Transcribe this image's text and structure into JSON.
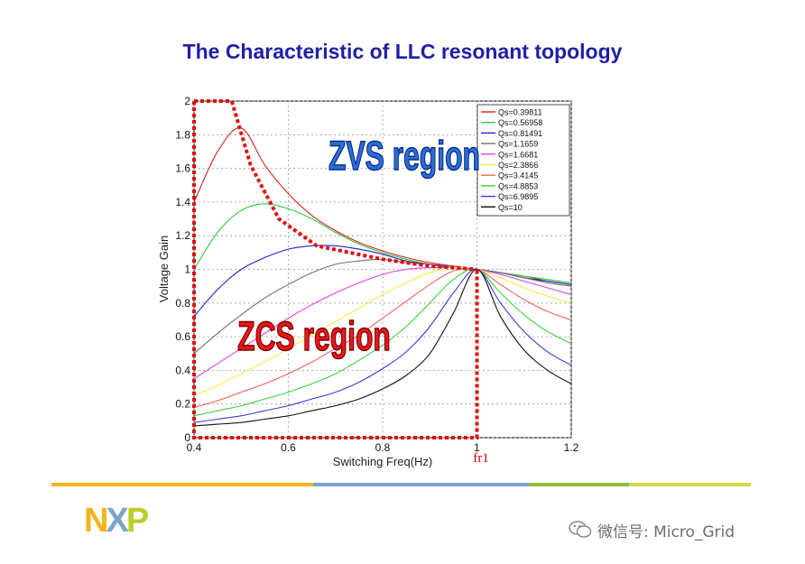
{
  "slide": {
    "title": "The Characteristic of LLC resonant topology",
    "watermark_text": "微信号: Micro_Grid",
    "watermark_icon": "wechat-icon",
    "logo_name": "nxp-logo",
    "logo_text": "NXP",
    "divider_colors": [
      "#f5b21b",
      "#7fa3c9",
      "#8bbd3e",
      "#cfd94a"
    ]
  },
  "chart_data": {
    "type": "line",
    "title": "",
    "xlabel": "Switching Freq(Hz)",
    "ylabel": "Voltage Gain",
    "xlim": [
      0.4,
      1.2
    ],
    "ylim": [
      0,
      2
    ],
    "xticks": [
      "0.4",
      "0.6",
      "0.8",
      "1",
      "1.2"
    ],
    "yticks": [
      "0",
      "0.2",
      "0.4",
      "0.6",
      "0.8",
      "1",
      "1.2",
      "1.4",
      "1.6",
      "1.8",
      "2"
    ],
    "grid": true,
    "legend_position": "top-right",
    "x": [
      0.4,
      0.45,
      0.5,
      0.55,
      0.6,
      0.65,
      0.7,
      0.75,
      0.8,
      0.85,
      0.9,
      0.95,
      1.0,
      1.05,
      1.1,
      1.15,
      1.2
    ],
    "series": [
      {
        "name": "Qs=0.39811",
        "color": "#d42020",
        "values": [
          1.4,
          1.7,
          1.84,
          1.62,
          1.45,
          1.32,
          1.23,
          1.16,
          1.11,
          1.07,
          1.04,
          1.02,
          1.0,
          0.98,
          0.96,
          0.93,
          0.91
        ]
      },
      {
        "name": "Qs=0.56958",
        "color": "#2ecc3a",
        "values": [
          1.0,
          1.22,
          1.35,
          1.39,
          1.36,
          1.3,
          1.22,
          1.15,
          1.1,
          1.06,
          1.03,
          1.01,
          1.0,
          0.98,
          0.96,
          0.94,
          0.92
        ]
      },
      {
        "name": "Qs=0.81491",
        "color": "#2020d0",
        "values": [
          0.72,
          0.88,
          1.0,
          1.07,
          1.12,
          1.14,
          1.14,
          1.12,
          1.09,
          1.05,
          1.03,
          1.01,
          1.0,
          0.98,
          0.95,
          0.93,
          0.91
        ]
      },
      {
        "name": "Qs=1.1659",
        "color": "#707070",
        "values": [
          0.5,
          0.62,
          0.73,
          0.83,
          0.91,
          0.98,
          1.03,
          1.05,
          1.06,
          1.04,
          1.03,
          1.02,
          1.0,
          0.98,
          0.95,
          0.92,
          0.9
        ]
      },
      {
        "name": "Qs=1.6681",
        "color": "#e040e0",
        "values": [
          0.35,
          0.44,
          0.53,
          0.62,
          0.71,
          0.79,
          0.86,
          0.92,
          0.97,
          1.0,
          1.01,
          1.01,
          1.0,
          0.97,
          0.93,
          0.89,
          0.85
        ]
      },
      {
        "name": "Qs=2.3866",
        "color": "#f2ee40",
        "values": [
          0.25,
          0.31,
          0.38,
          0.45,
          0.53,
          0.61,
          0.69,
          0.77,
          0.85,
          0.92,
          0.98,
          1.01,
          1.0,
          0.95,
          0.89,
          0.84,
          0.8
        ]
      },
      {
        "name": "Qs=3.4145",
        "color": "#f06060",
        "values": [
          0.18,
          0.22,
          0.27,
          0.32,
          0.38,
          0.45,
          0.53,
          0.61,
          0.71,
          0.81,
          0.91,
          0.99,
          1.0,
          0.91,
          0.82,
          0.75,
          0.7
        ]
      },
      {
        "name": "Qs=4.8853",
        "color": "#40d040",
        "values": [
          0.13,
          0.16,
          0.19,
          0.23,
          0.27,
          0.32,
          0.38,
          0.46,
          0.55,
          0.66,
          0.8,
          0.94,
          1.0,
          0.86,
          0.73,
          0.63,
          0.56
        ]
      },
      {
        "name": "Qs=6.9895",
        "color": "#3a3ad8",
        "values": [
          0.09,
          0.11,
          0.13,
          0.16,
          0.19,
          0.23,
          0.27,
          0.33,
          0.41,
          0.51,
          0.66,
          0.86,
          1.0,
          0.8,
          0.63,
          0.51,
          0.43
        ]
      },
      {
        "name": "Qs=10",
        "color": "#101010",
        "values": [
          0.07,
          0.08,
          0.09,
          0.11,
          0.13,
          0.16,
          0.19,
          0.23,
          0.29,
          0.37,
          0.5,
          0.74,
          1.0,
          0.72,
          0.52,
          0.4,
          0.32
        ]
      }
    ],
    "annotations": {
      "zvs_label": "ZVS region",
      "zcs_label": "ZCS region",
      "fr_label": "fr1",
      "zvs_boundary": [
        [
          0.4,
          2.0
        ],
        [
          0.48,
          2.0
        ],
        [
          0.52,
          1.62
        ],
        [
          0.58,
          1.3
        ],
        [
          0.66,
          1.14
        ],
        [
          0.8,
          1.06
        ],
        [
          0.9,
          1.02
        ],
        [
          1.0,
          1.0
        ]
      ],
      "zcs_boundary": [
        [
          0.4,
          2.0
        ],
        [
          0.4,
          0.0
        ],
        [
          1.0,
          0.0
        ],
        [
          1.0,
          1.0
        ]
      ],
      "boundary_color": "#e01010"
    }
  }
}
